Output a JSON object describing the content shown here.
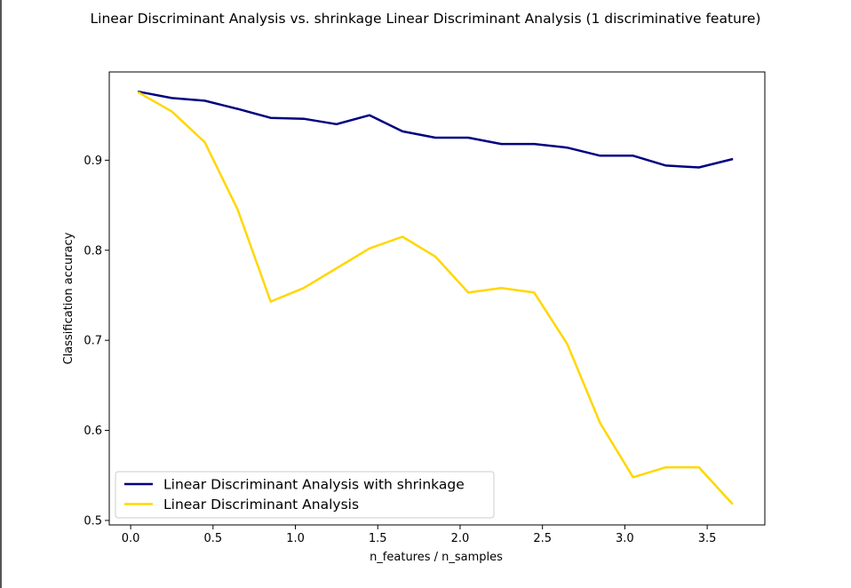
{
  "chart_data": {
    "type": "line",
    "title": "Linear Discriminant Analysis vs. shrinkage Linear Discriminant Analysis (1 discriminative feature)",
    "xlabel": "n_features / n_samples",
    "ylabel": "Classification accuracy",
    "xlim": [
      -0.13,
      3.85
    ],
    "ylim": [
      0.495,
      0.998
    ],
    "xticks": [
      0.0,
      0.5,
      1.0,
      1.5,
      2.0,
      2.5,
      3.0,
      3.5
    ],
    "xtick_labels": [
      "0.0",
      "0.5",
      "1.0",
      "1.5",
      "2.0",
      "2.5",
      "3.0",
      "3.5"
    ],
    "yticks": [
      0.5,
      0.6,
      0.7,
      0.8,
      0.9
    ],
    "ytick_labels": [
      "0.5",
      "0.6",
      "0.7",
      "0.8",
      "0.9"
    ],
    "grid": false,
    "legend_position": "lower-left",
    "x": [
      0.05,
      0.25,
      0.45,
      0.65,
      0.85,
      1.05,
      1.25,
      1.45,
      1.65,
      1.85,
      2.05,
      2.25,
      2.45,
      2.65,
      2.85,
      3.05,
      3.25,
      3.45,
      3.65
    ],
    "series": [
      {
        "name": "Linear Discriminant Analysis with shrinkage",
        "color": "#000080",
        "values": [
          0.976,
          0.969,
          0.966,
          0.957,
          0.947,
          0.946,
          0.94,
          0.95,
          0.932,
          0.925,
          0.925,
          0.918,
          0.918,
          0.914,
          0.905,
          0.905,
          0.894,
          0.892,
          0.901
        ]
      },
      {
        "name": "Linear Discriminant Analysis",
        "color": "#FFD700",
        "values": [
          0.975,
          0.954,
          0.92,
          0.845,
          0.743,
          0.758,
          0.78,
          0.802,
          0.815,
          0.793,
          0.753,
          0.758,
          0.753,
          0.696,
          0.608,
          0.548,
          0.559,
          0.559,
          0.519
        ]
      }
    ]
  }
}
